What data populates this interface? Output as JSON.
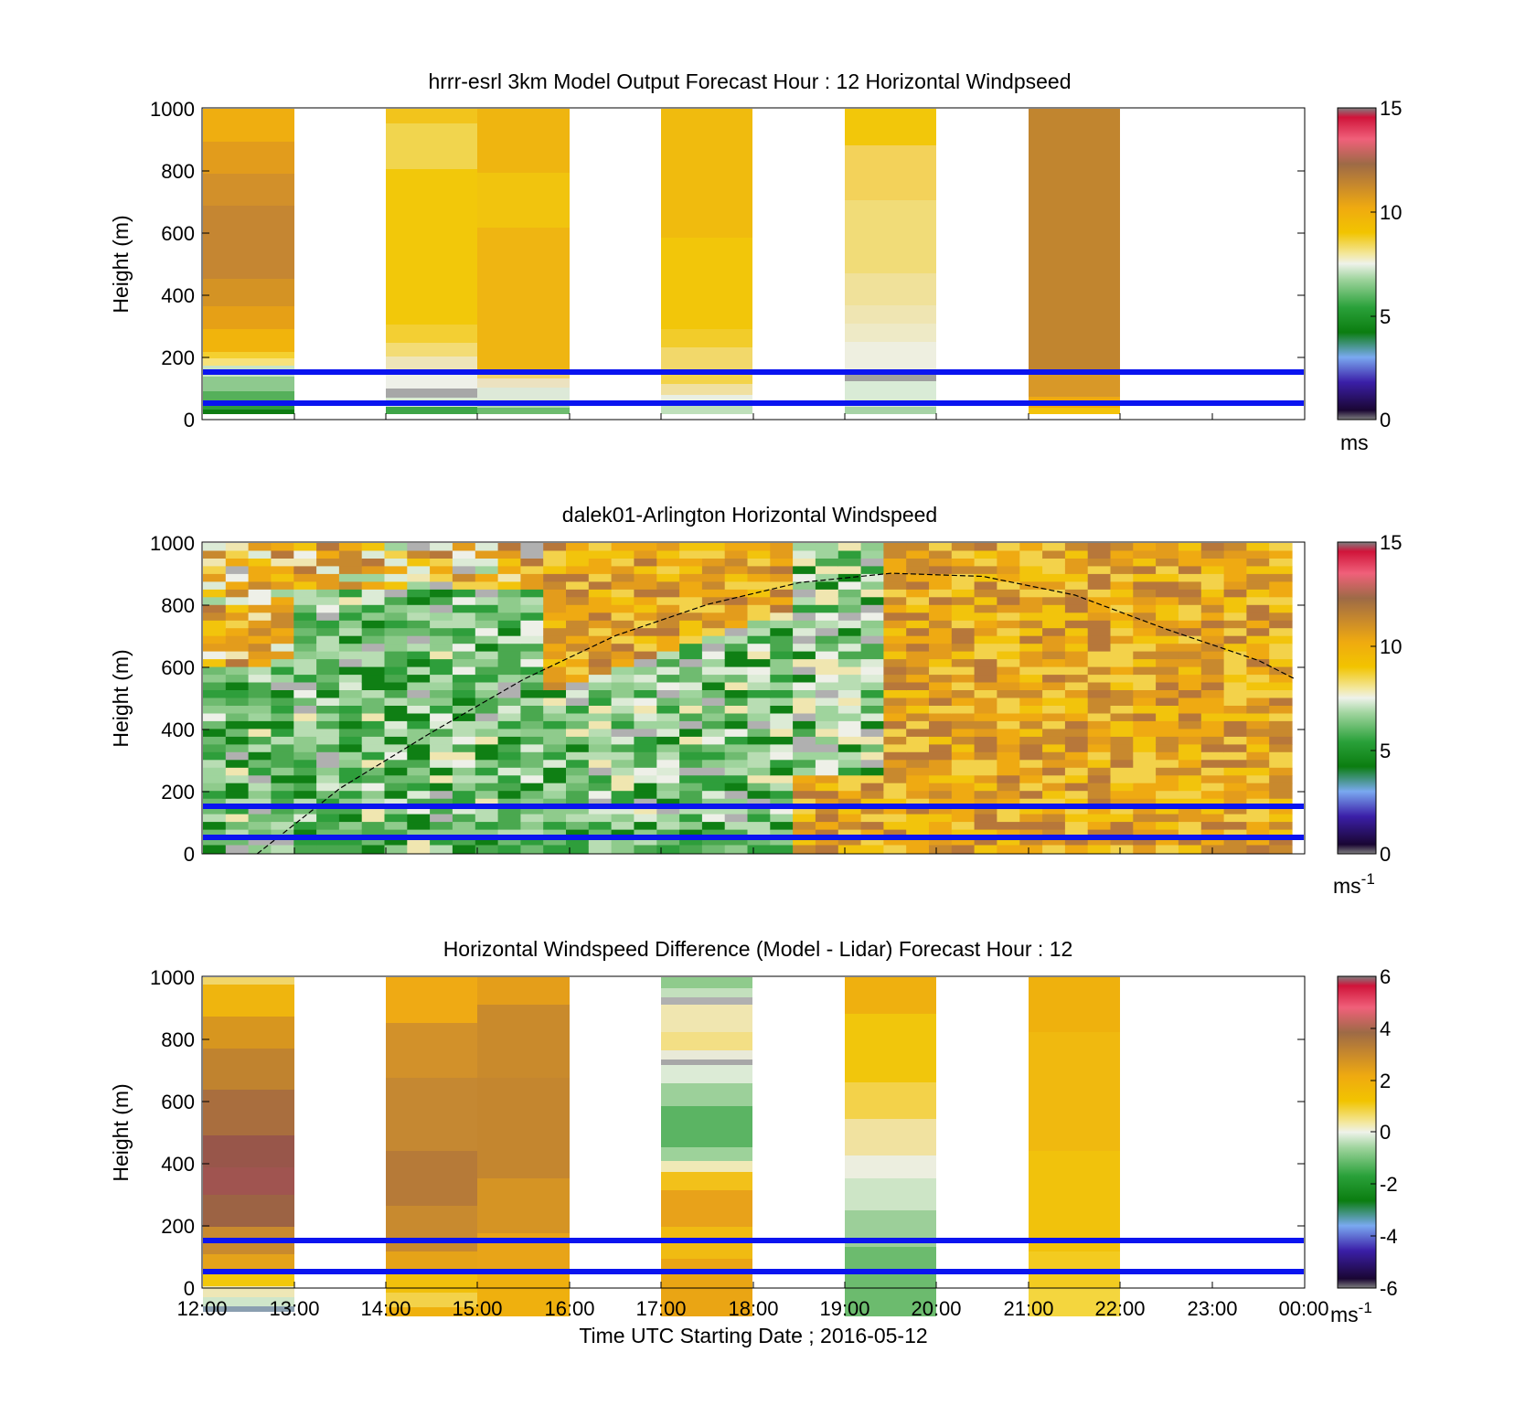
{
  "figure": {
    "xlabel": "Time UTC  Starting Date ; 2016-05-12",
    "time_ticks": [
      "12:00",
      "13:00",
      "14:00",
      "15:00",
      "16:00",
      "17:00",
      "18:00",
      "19:00",
      "20:00",
      "21:00",
      "22:00",
      "23:00",
      "00:00"
    ],
    "height_ticks": [
      "0",
      "200",
      "400",
      "600",
      "800",
      "1000"
    ],
    "ylabel": "Height (m)",
    "reference_lines_m": [
      50,
      155
    ],
    "reference_line_color": "#0a14f0"
  },
  "chart_data": [
    {
      "type": "heatmap",
      "title": "hrrr-esrl 3km Model Output   Forecast Hour : 12 Horizontal Windpseed",
      "ylabel": "Height (m)",
      "xlim": [
        "12:00",
        "00:00"
      ],
      "ylim": [
        0,
        1000
      ],
      "colorbar": {
        "ticks": [
          "0",
          "5",
          "10",
          "15"
        ],
        "range": [
          0,
          15
        ],
        "unit_label": "ms",
        "unit_sup": ""
      },
      "columns_available": [
        {
          "start": "12:00",
          "end": "13:00",
          "approx_speed_m_s": "3-12"
        },
        {
          "start": "14:00",
          "end": "15:00",
          "approx_speed_m_s": "6-9"
        },
        {
          "start": "15:00",
          "end": "16:00",
          "approx_speed_m_s": "6-10"
        },
        {
          "start": "17:00",
          "end": "18:00",
          "approx_speed_m_s": "7-9"
        },
        {
          "start": "19:00",
          "end": "20:00",
          "approx_speed_m_s": "7-9"
        },
        {
          "start": "21:00",
          "end": "22:00",
          "approx_speed_m_s": "9-11"
        }
      ]
    },
    {
      "type": "heatmap",
      "title": "dalek01-Arlington  Horizontal Windspeed",
      "ylabel": "Height (m)",
      "xlim": [
        "12:00",
        "00:00"
      ],
      "ylim": [
        0,
        1000
      ],
      "colorbar": {
        "ticks": [
          "0",
          "5",
          "10",
          "15"
        ],
        "range": [
          0,
          15
        ],
        "unit_label": "ms",
        "unit_sup": "-1"
      },
      "boundary_layer_curve": {
        "x_hours": [
          12.6,
          13.5,
          14.5,
          15.5,
          16.5,
          17.5,
          18.5,
          19.5,
          20.5,
          21.5,
          22.5,
          23.5,
          23.9
        ],
        "height_m": [
          0,
          210,
          390,
          560,
          700,
          800,
          870,
          900,
          890,
          830,
          720,
          620,
          560
        ]
      }
    },
    {
      "type": "heatmap",
      "title": "Horizontal Windspeed Difference (Model - Lidar) Forecast Hour : 12",
      "ylabel": "Height (m)",
      "xlabel": "Time UTC  Starting Date ; 2016-05-12",
      "xlim": [
        "12:00",
        "00:00"
      ],
      "ylim": [
        0,
        1000
      ],
      "colorbar": {
        "ticks": [
          "-6",
          "-4",
          "-2",
          "0",
          "2",
          "4",
          "6"
        ],
        "range": [
          -6,
          6
        ],
        "unit_label": "ms",
        "unit_sup": "-1"
      },
      "columns_available": [
        {
          "start": "12:00",
          "end": "13:00"
        },
        {
          "start": "14:00",
          "end": "15:00"
        },
        {
          "start": "15:00",
          "end": "16:00"
        },
        {
          "start": "17:00",
          "end": "18:00"
        },
        {
          "start": "19:00",
          "end": "20:00"
        },
        {
          "start": "21:00",
          "end": "22:00"
        }
      ]
    }
  ]
}
